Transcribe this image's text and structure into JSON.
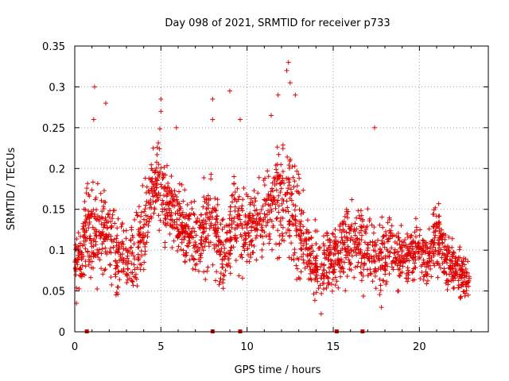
{
  "chart_data": {
    "type": "scatter",
    "title": "Day 098 of 2021, SRMTID for receiver p733",
    "xlabel": "GPS time / hours",
    "ylabel": "SRMTID / TECUs",
    "xlim": [
      0,
      24
    ],
    "ylim": [
      0,
      0.35
    ],
    "x_ticks": [
      0,
      5,
      10,
      15,
      20
    ],
    "y_ticks": [
      0,
      0.05,
      0.1,
      0.15,
      0.2,
      0.25,
      0.3,
      0.35
    ],
    "x_tick_labels": [
      "0",
      "5",
      "10",
      "15",
      "20"
    ],
    "y_tick_labels": [
      "0",
      "0.05",
      "0.1",
      "0.15",
      "0.2",
      "0.25",
      "0.3",
      "0.35"
    ],
    "grid": true,
    "marker": "+",
    "color": "#e00000",
    "x_range_of_data": [
      0,
      22.9
    ],
    "envelope": [
      {
        "x": 0.0,
        "base": 0.085,
        "spread": 0.04
      },
      {
        "x": 0.5,
        "base": 0.1,
        "spread": 0.05
      },
      {
        "x": 0.7,
        "base": 0.13,
        "spread": 0.07
      },
      {
        "x": 1.2,
        "base": 0.11,
        "spread": 0.06
      },
      {
        "x": 1.8,
        "base": 0.13,
        "spread": 0.07
      },
      {
        "x": 2.5,
        "base": 0.09,
        "spread": 0.05
      },
      {
        "x": 3.2,
        "base": 0.09,
        "spread": 0.05
      },
      {
        "x": 4.0,
        "base": 0.12,
        "spread": 0.06
      },
      {
        "x": 4.5,
        "base": 0.18,
        "spread": 0.05
      },
      {
        "x": 5.0,
        "base": 0.17,
        "spread": 0.07
      },
      {
        "x": 5.5,
        "base": 0.15,
        "spread": 0.05
      },
      {
        "x": 6.0,
        "base": 0.14,
        "spread": 0.05
      },
      {
        "x": 6.8,
        "base": 0.11,
        "spread": 0.05
      },
      {
        "x": 7.5,
        "base": 0.12,
        "spread": 0.06
      },
      {
        "x": 8.0,
        "base": 0.14,
        "spread": 0.07
      },
      {
        "x": 8.6,
        "base": 0.09,
        "spread": 0.05
      },
      {
        "x": 9.2,
        "base": 0.14,
        "spread": 0.07
      },
      {
        "x": 10.0,
        "base": 0.12,
        "spread": 0.06
      },
      {
        "x": 10.8,
        "base": 0.14,
        "spread": 0.07
      },
      {
        "x": 11.5,
        "base": 0.15,
        "spread": 0.07
      },
      {
        "x": 12.2,
        "base": 0.17,
        "spread": 0.09
      },
      {
        "x": 12.8,
        "base": 0.14,
        "spread": 0.08
      },
      {
        "x": 13.5,
        "base": 0.1,
        "spread": 0.05
      },
      {
        "x": 14.3,
        "base": 0.08,
        "spread": 0.05
      },
      {
        "x": 15.0,
        "base": 0.09,
        "spread": 0.05
      },
      {
        "x": 16.0,
        "base": 0.11,
        "spread": 0.05
      },
      {
        "x": 16.8,
        "base": 0.1,
        "spread": 0.05
      },
      {
        "x": 17.5,
        "base": 0.09,
        "spread": 0.05
      },
      {
        "x": 18.2,
        "base": 0.1,
        "spread": 0.05
      },
      {
        "x": 19.0,
        "base": 0.09,
        "spread": 0.04
      },
      {
        "x": 19.8,
        "base": 0.1,
        "spread": 0.04
      },
      {
        "x": 20.5,
        "base": 0.09,
        "spread": 0.04
      },
      {
        "x": 21.0,
        "base": 0.12,
        "spread": 0.05
      },
      {
        "x": 21.8,
        "base": 0.08,
        "spread": 0.04
      },
      {
        "x": 22.5,
        "base": 0.07,
        "spread": 0.04
      },
      {
        "x": 22.9,
        "base": 0.06,
        "spread": 0.02
      }
    ],
    "notable_points": [
      {
        "x": 1.15,
        "y": 0.3
      },
      {
        "x": 1.1,
        "y": 0.26
      },
      {
        "x": 1.8,
        "y": 0.28
      },
      {
        "x": 5.0,
        "y": 0.285
      },
      {
        "x": 5.0,
        "y": 0.27
      },
      {
        "x": 5.9,
        "y": 0.25
      },
      {
        "x": 8.0,
        "y": 0.285
      },
      {
        "x": 8.0,
        "y": 0.26
      },
      {
        "x": 9.0,
        "y": 0.295
      },
      {
        "x": 9.6,
        "y": 0.26
      },
      {
        "x": 11.4,
        "y": 0.265
      },
      {
        "x": 11.8,
        "y": 0.29
      },
      {
        "x": 12.4,
        "y": 0.33
      },
      {
        "x": 12.3,
        "y": 0.32
      },
      {
        "x": 12.5,
        "y": 0.305
      },
      {
        "x": 12.8,
        "y": 0.29
      },
      {
        "x": 17.4,
        "y": 0.25
      },
      {
        "x": 0.1,
        "y": 0.035
      },
      {
        "x": 14.3,
        "y": 0.022
      },
      {
        "x": 17.8,
        "y": 0.03
      }
    ],
    "gap_markers_x": [
      0.7,
      8.0,
      9.6,
      15.2,
      16.7
    ]
  }
}
